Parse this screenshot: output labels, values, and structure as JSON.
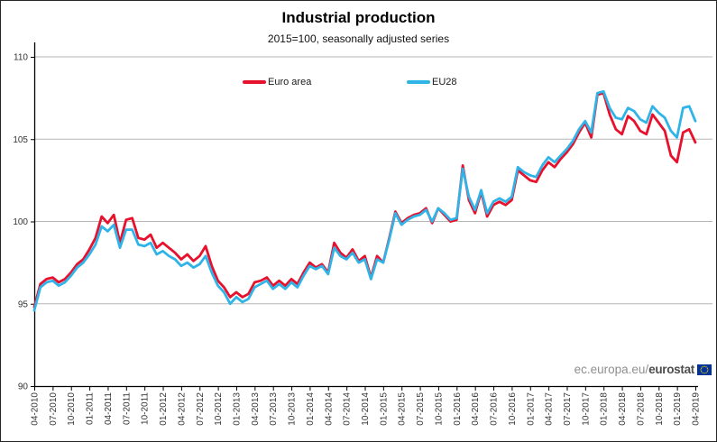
{
  "header": {
    "title": "Industrial production",
    "subtitle": "2015=100, seasonally adjusted series"
  },
  "watermark": {
    "url_prefix": "ec.europa.eu/",
    "brand": "eurostat"
  },
  "chart_data": {
    "type": "line",
    "title": "Industrial production",
    "subtitle": "2015=100, seasonally adjusted series",
    "x_unit": "month",
    "x_start": "04-2010",
    "x_end": "04-2019",
    "x_tick_step_months": 3,
    "x_tick_labels": [
      "04-2010",
      "07-2010",
      "10-2010",
      "01-2011",
      "04-2011",
      "07-2011",
      "10-2011",
      "01-2012",
      "04-2012",
      "07-2012",
      "10-2012",
      "01-2013",
      "04-2013",
      "07-2013",
      "10-2013",
      "01-2014",
      "04-2014",
      "07-2014",
      "10-2014",
      "01-2015",
      "04-2015",
      "07-2015",
      "10-2015",
      "01-2016",
      "04-2016",
      "07-2016",
      "10-2016",
      "01-2017",
      "04-2017",
      "07-2017",
      "10-2017",
      "01-2018",
      "04-2018",
      "07-2018",
      "10-2018",
      "01-2019",
      "04-2019"
    ],
    "ylim": [
      90,
      110
    ],
    "yticks": [
      90,
      95,
      100,
      105,
      110
    ],
    "grid": "horizontal",
    "legend_position": "top-center",
    "colors": {
      "grid": "#b5b5b5",
      "axis": "#000000",
      "tick_text": "#333333"
    },
    "series": [
      {
        "name": "Euro area",
        "color": "#e8112d",
        "values": [
          94.8,
          96.2,
          96.5,
          96.6,
          96.3,
          96.5,
          96.9,
          97.4,
          97.7,
          98.3,
          99.0,
          100.3,
          99.9,
          100.4,
          98.7,
          100.1,
          100.2,
          99.0,
          98.9,
          99.2,
          98.4,
          98.7,
          98.4,
          98.1,
          97.7,
          98.0,
          97.6,
          97.9,
          98.5,
          97.3,
          96.4,
          96.0,
          95.4,
          95.7,
          95.4,
          95.6,
          96.3,
          96.4,
          96.6,
          96.1,
          96.4,
          96.1,
          96.5,
          96.2,
          96.9,
          97.5,
          97.2,
          97.4,
          96.9,
          98.7,
          98.1,
          97.8,
          98.3,
          97.6,
          97.9,
          96.6,
          97.9,
          97.5,
          99.0,
          100.6,
          99.9,
          100.2,
          100.4,
          100.5,
          100.8,
          99.9,
          100.8,
          100.4,
          100.0,
          100.1,
          103.4,
          101.3,
          100.5,
          101.8,
          100.3,
          101.0,
          101.2,
          101.0,
          101.3,
          103.1,
          102.8,
          102.5,
          102.4,
          103.1,
          103.6,
          103.3,
          103.8,
          104.2,
          104.7,
          105.4,
          106.0,
          105.1,
          107.7,
          107.8,
          106.5,
          105.6,
          105.3,
          106.4,
          106.1,
          105.5,
          105.3,
          106.5,
          106.0,
          105.5,
          104.0,
          103.6,
          105.4,
          105.6,
          104.8
        ]
      },
      {
        "name": "EU28",
        "color": "#30b4e8",
        "values": [
          94.6,
          96.0,
          96.3,
          96.4,
          96.1,
          96.3,
          96.7,
          97.2,
          97.5,
          98.0,
          98.6,
          99.7,
          99.4,
          99.8,
          98.4,
          99.5,
          99.5,
          98.6,
          98.5,
          98.7,
          98.0,
          98.2,
          97.9,
          97.7,
          97.3,
          97.5,
          97.2,
          97.4,
          97.9,
          96.9,
          96.1,
          95.7,
          95.0,
          95.4,
          95.1,
          95.3,
          96.0,
          96.2,
          96.4,
          95.9,
          96.2,
          95.9,
          96.3,
          96.0,
          96.7,
          97.3,
          97.1,
          97.3,
          96.8,
          98.4,
          97.9,
          97.7,
          98.1,
          97.5,
          97.7,
          96.5,
          97.7,
          97.5,
          98.9,
          100.5,
          99.8,
          100.1,
          100.3,
          100.4,
          100.7,
          100.0,
          100.8,
          100.5,
          100.1,
          100.2,
          103.2,
          101.5,
          100.7,
          101.9,
          100.5,
          101.2,
          101.4,
          101.2,
          101.5,
          103.3,
          103.0,
          102.8,
          102.7,
          103.4,
          103.9,
          103.6,
          104.0,
          104.4,
          104.9,
          105.6,
          106.1,
          105.4,
          107.8,
          107.9,
          106.9,
          106.3,
          106.2,
          106.9,
          106.7,
          106.2,
          106.0,
          107.0,
          106.6,
          106.3,
          105.5,
          105.1,
          106.9,
          107.0,
          106.1
        ]
      }
    ]
  }
}
